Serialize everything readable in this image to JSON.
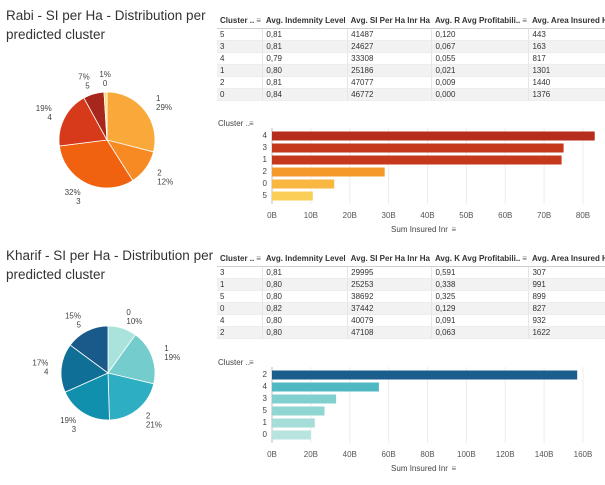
{
  "rabi": {
    "title_line1": "Rabi - SI per Ha - Distribution per",
    "title_line2": "predicted cluster",
    "table_headers": [
      "Cluster ..",
      "Avg. Indemnity Level",
      "Avg. SI Per Ha Inr Ha",
      "Avg. R Avg Profitabili..",
      "Avg. Area Insured Ha"
    ],
    "table_rows": [
      [
        "5",
        "0,81",
        "41487",
        "0,120",
        "443"
      ],
      [
        "3",
        "0,81",
        "24627",
        "0,067",
        "163"
      ],
      [
        "4",
        "0,79",
        "33308",
        "0,055",
        "817"
      ],
      [
        "1",
        "0,80",
        "25186",
        "0,021",
        "1301"
      ],
      [
        "2",
        "0,81",
        "47077",
        "0,009",
        "1440"
      ],
      [
        "0",
        "0,84",
        "46772",
        "0,000",
        "1376"
      ]
    ],
    "pie": {
      "slices": [
        {
          "cluster": "1",
          "label": "29%",
          "value": 29,
          "color": "#f9a83a"
        },
        {
          "cluster": "2",
          "label": "12%",
          "value": 12,
          "color": "#f78a22"
        },
        {
          "cluster": "3",
          "label": "32%",
          "value": 32,
          "color": "#f0620f"
        },
        {
          "cluster": "4",
          "label": "19%",
          "value": 19,
          "color": "#d63a1a"
        },
        {
          "cluster": "5",
          "label": "7%",
          "value": 7,
          "color": "#a8271c"
        },
        {
          "cluster": "0",
          "label": "1%",
          "value": 1,
          "color": "#f9dc6a"
        }
      ]
    },
    "bar_axis_label": "Cluster ..",
    "bar_x_title": "Sum Insured Inr",
    "bar_ticks": [
      "0B",
      "10B",
      "20B",
      "30B",
      "40B",
      "50B",
      "60B",
      "70B",
      "80B"
    ],
    "bar_max": 80,
    "bars": [
      {
        "cat": "4",
        "value": 83,
        "color": "#b62d1c"
      },
      {
        "cat": "3",
        "value": 75,
        "color": "#c5381c"
      },
      {
        "cat": "1",
        "value": 74.5,
        "color": "#c5381c"
      },
      {
        "cat": "2",
        "value": 29,
        "color": "#f59a2a"
      },
      {
        "cat": "0",
        "value": 16,
        "color": "#f9b640"
      },
      {
        "cat": "5",
        "value": 10.5,
        "color": "#f9cf58"
      }
    ]
  },
  "kharif": {
    "title_line1": "Kharif - SI per Ha - Distribution per",
    "title_line2": "predicted cluster",
    "table_headers": [
      "Cluster ..",
      "Avg. Indemnity Level",
      "Avg. SI Per Ha Inr Ha",
      "Avg. K Avg Profitabili..",
      "Avg. Area Insured Ha"
    ],
    "table_rows": [
      [
        "3",
        "0,81",
        "29995",
        "0,591",
        "307"
      ],
      [
        "1",
        "0,80",
        "25253",
        "0,338",
        "991"
      ],
      [
        "5",
        "0,80",
        "38692",
        "0,325",
        "899"
      ],
      [
        "0",
        "0,82",
        "37442",
        "0,129",
        "827"
      ],
      [
        "4",
        "0,80",
        "40079",
        "0,091",
        "932"
      ],
      [
        "2",
        "0,80",
        "47108",
        "0,063",
        "1622"
      ]
    ],
    "pie": {
      "slices": [
        {
          "cluster": "0",
          "label": "10%",
          "value": 10,
          "color": "#a9e3dc"
        },
        {
          "cluster": "1",
          "label": "19%",
          "value": 19,
          "color": "#74cccc"
        },
        {
          "cluster": "2",
          "label": "21%",
          "value": 21,
          "color": "#2eaec2"
        },
        {
          "cluster": "3",
          "label": "19%",
          "value": 19,
          "color": "#1190ae"
        },
        {
          "cluster": "4",
          "label": "17%",
          "value": 17,
          "color": "#0f6f96"
        },
        {
          "cluster": "5",
          "label": "15%",
          "value": 15,
          "color": "#1a5a8a"
        }
      ]
    },
    "bar_axis_label": "Cluster ..",
    "bar_x_title": "Sum Insured Inr",
    "bar_ticks": [
      "0B",
      "20B",
      "40B",
      "60B",
      "80B",
      "100B",
      "120B",
      "140B",
      "160B"
    ],
    "bar_max": 160,
    "bars": [
      {
        "cat": "2",
        "value": 157,
        "color": "#1b5e8e"
      },
      {
        "cat": "4",
        "value": 55,
        "color": "#4fb8c2"
      },
      {
        "cat": "3",
        "value": 33,
        "color": "#7fd0cf"
      },
      {
        "cat": "5",
        "value": 27,
        "color": "#8fd6d2"
      },
      {
        "cat": "1",
        "value": 22,
        "color": "#a6ddd9"
      },
      {
        "cat": "0",
        "value": 20,
        "color": "#b8e4df"
      }
    ]
  },
  "chart_data": [
    {
      "type": "pie",
      "title": "Rabi - SI per Ha - Distribution per predicted cluster",
      "labels": [
        "1",
        "2",
        "3",
        "4",
        "5",
        "0"
      ],
      "values": [
        29,
        12,
        32,
        19,
        7,
        1
      ]
    },
    {
      "type": "bar",
      "ylabel": "Cluster ..",
      "xlabel": "Sum Insured Inr",
      "categories": [
        "4",
        "3",
        "1",
        "2",
        "0",
        "5"
      ],
      "values": [
        83,
        75,
        74.5,
        29,
        16,
        10.5
      ],
      "xlim": [
        0,
        80
      ]
    },
    {
      "type": "table",
      "columns": [
        "Cluster ..",
        "Avg. Indemnity Level",
        "Avg. SI Per Ha Inr Ha",
        "Avg. R Avg Profitabili..",
        "Avg. Area Insured Ha"
      ],
      "rows": [
        [
          "5",
          "0,81",
          "41487",
          "0,120",
          "443"
        ],
        [
          "3",
          "0,81",
          "24627",
          "0,067",
          "163"
        ],
        [
          "4",
          "0,79",
          "33308",
          "0,055",
          "817"
        ],
        [
          "1",
          "0,80",
          "25186",
          "0,021",
          "1301"
        ],
        [
          "2",
          "0,81",
          "47077",
          "0,009",
          "1440"
        ],
        [
          "0",
          "0,84",
          "46772",
          "0,000",
          "1376"
        ]
      ]
    },
    {
      "type": "pie",
      "title": "Kharif - SI per Ha - Distribution per predicted cluster",
      "labels": [
        "0",
        "1",
        "2",
        "3",
        "4",
        "5"
      ],
      "values": [
        10,
        19,
        21,
        19,
        17,
        15
      ]
    },
    {
      "type": "bar",
      "ylabel": "Cluster ..",
      "xlabel": "Sum Insured Inr",
      "categories": [
        "2",
        "4",
        "3",
        "5",
        "1",
        "0"
      ],
      "values": [
        157,
        55,
        33,
        27,
        22,
        20
      ],
      "xlim": [
        0,
        160
      ]
    },
    {
      "type": "table",
      "columns": [
        "Cluster ..",
        "Avg. Indemnity Level",
        "Avg. SI Per Ha Inr Ha",
        "Avg. K Avg Profitabili..",
        "Avg. Area Insured Ha"
      ],
      "rows": [
        [
          "3",
          "0,81",
          "29995",
          "0,591",
          "307"
        ],
        [
          "1",
          "0,80",
          "25253",
          "0,338",
          "991"
        ],
        [
          "5",
          "0,80",
          "38692",
          "0,325",
          "899"
        ],
        [
          "0",
          "0,82",
          "37442",
          "0,129",
          "827"
        ],
        [
          "4",
          "0,80",
          "40079",
          "0,091",
          "932"
        ],
        [
          "2",
          "0,80",
          "47108",
          "0,063",
          "1622"
        ]
      ]
    }
  ]
}
